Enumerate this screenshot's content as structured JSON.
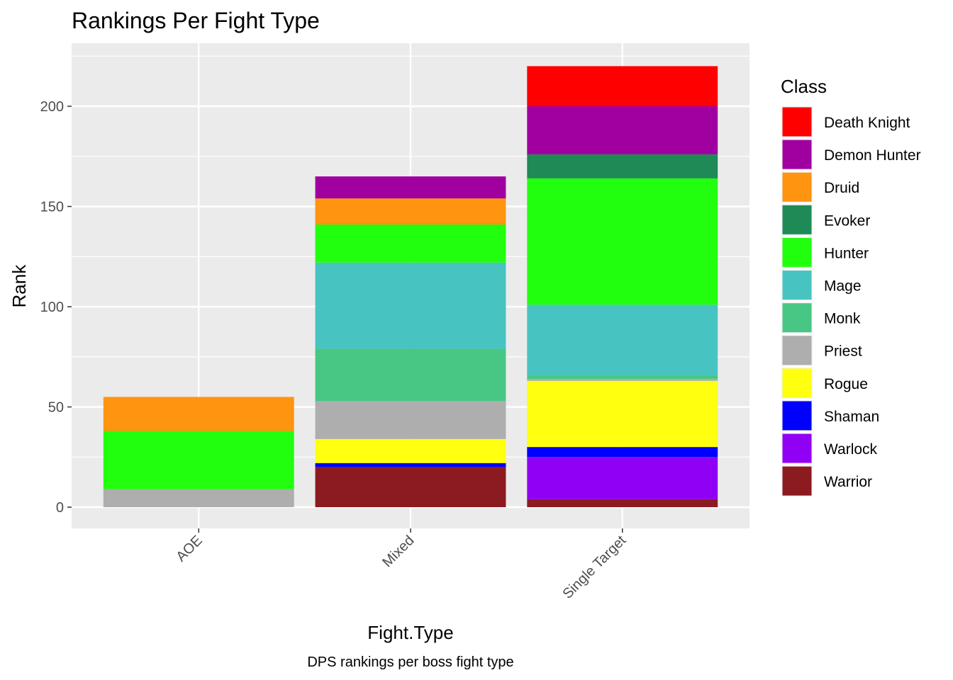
{
  "chart_data": {
    "type": "bar",
    "stacked": true,
    "title": "Rankings Per Fight Type",
    "xlabel": "Fight.Type",
    "ylabel": "Rank",
    "caption": "DPS rankings per boss fight type",
    "categories": [
      "AOE",
      "Mixed",
      "Single Target"
    ],
    "ylim": [
      -10,
      230
    ],
    "yticks": [
      0,
      50,
      100,
      150,
      200
    ],
    "grid": true,
    "legend": {
      "title": "Class",
      "position": "right"
    },
    "series": [
      {
        "name": "Death Knight",
        "color": "#FF0000",
        "values": [
          0,
          0,
          20
        ]
      },
      {
        "name": "Demon Hunter",
        "color": "#A000A0",
        "values": [
          0,
          11,
          24
        ]
      },
      {
        "name": "Druid",
        "color": "#FF9410",
        "values": [
          17,
          13,
          0
        ]
      },
      {
        "name": "Evoker",
        "color": "#1E8A55",
        "values": [
          0,
          0,
          12
        ]
      },
      {
        "name": "Hunter",
        "color": "#22FF0E",
        "values": [
          29,
          19,
          63
        ]
      },
      {
        "name": "Mage",
        "color": "#47C4C2",
        "values": [
          0,
          43,
          35
        ]
      },
      {
        "name": "Monk",
        "color": "#47C783",
        "values": [
          0,
          26,
          2
        ]
      },
      {
        "name": "Priest",
        "color": "#AEAEAE",
        "values": [
          9,
          19,
          1
        ]
      },
      {
        "name": "Rogue",
        "color": "#FFFF10",
        "values": [
          0,
          12,
          33
        ]
      },
      {
        "name": "Shaman",
        "color": "#0000FF",
        "values": [
          0,
          2,
          5
        ]
      },
      {
        "name": "Warlock",
        "color": "#8F00F5",
        "values": [
          0,
          0,
          21
        ]
      },
      {
        "name": "Warrior",
        "color": "#8C1A21",
        "values": [
          0,
          20,
          4
        ]
      }
    ]
  }
}
